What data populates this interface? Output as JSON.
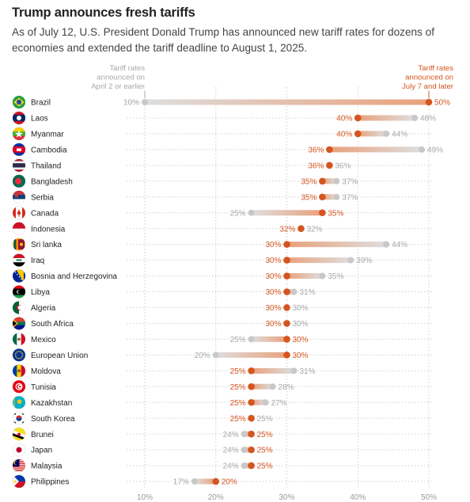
{
  "title": "Trump announces fresh tariffs",
  "subtitle": "As of July 12, U.S. President Donald Trump has announced new tariff rates for dozens of economies and extended the tariff deadline to August 1, 2025.",
  "colors": {
    "new": "#d4551f",
    "old": "#c8c8c8",
    "old_text": "#a8a8a8",
    "grid": "#cfcfcf"
  },
  "chart_data": {
    "type": "dot-range",
    "series": [
      {
        "name": "Tariff rates announced on April 2 or earlier",
        "header_lines": [
          "Tariff rates",
          "announced on",
          "April 2 or earlier"
        ]
      },
      {
        "name": "Tariff rates announced on July 7 and later",
        "header_lines": [
          "Tariff rates",
          "announced on",
          "July 7 and later"
        ]
      }
    ],
    "x_ticks": [
      "10%",
      "20%",
      "30%",
      "40%",
      "50%"
    ],
    "xlim": [
      10,
      50
    ],
    "rows": [
      {
        "country": "Brazil",
        "old": 10,
        "new": 50,
        "old_label": "10%",
        "new_label": "50%"
      },
      {
        "country": "Laos",
        "old": 48,
        "new": 40,
        "old_label": "48%",
        "new_label": "40%"
      },
      {
        "country": "Myanmar",
        "old": 44,
        "new": 40,
        "old_label": "44%",
        "new_label": "40%"
      },
      {
        "country": "Cambodia",
        "old": 49,
        "new": 36,
        "old_label": "49%",
        "new_label": "36%"
      },
      {
        "country": "Thailand",
        "old": 36,
        "new": 36,
        "old_label": "36%",
        "new_label": "36%"
      },
      {
        "country": "Bangladesh",
        "old": 37,
        "new": 35,
        "old_label": "37%",
        "new_label": "35%"
      },
      {
        "country": "Serbia",
        "old": 37,
        "new": 35,
        "old_label": "37%",
        "new_label": "35%"
      },
      {
        "country": "Canada",
        "old": 25,
        "new": 35,
        "old_label": "25%",
        "new_label": "35%"
      },
      {
        "country": "Indonesia",
        "old": 32,
        "new": 32,
        "old_label": "32%",
        "new_label": "32%"
      },
      {
        "country": "Sri lanka",
        "old": 44,
        "new": 30,
        "old_label": "44%",
        "new_label": "30%"
      },
      {
        "country": "Iraq",
        "old": 39,
        "new": 30,
        "old_label": "39%",
        "new_label": "30%"
      },
      {
        "country": "Bosnia and Herzegovina",
        "old": 35,
        "new": 30,
        "old_label": "35%",
        "new_label": "30%"
      },
      {
        "country": "Libya",
        "old": 31,
        "new": 30,
        "old_label": "31%",
        "new_label": "30%"
      },
      {
        "country": "Algeria",
        "old": 30,
        "new": 30,
        "old_label": "30%",
        "new_label": "30%"
      },
      {
        "country": "South Africa",
        "old": 30,
        "new": 30,
        "old_label": "30%",
        "new_label": "30%"
      },
      {
        "country": "Mexico",
        "old": 25,
        "new": 30,
        "old_label": "25%",
        "new_label": "30%"
      },
      {
        "country": "European Union",
        "old": 20,
        "new": 30,
        "old_label": "20%",
        "new_label": "30%"
      },
      {
        "country": "Moldova",
        "old": 31,
        "new": 25,
        "old_label": "31%",
        "new_label": "25%"
      },
      {
        "country": "Tunisia",
        "old": 28,
        "new": 25,
        "old_label": "28%",
        "new_label": "25%"
      },
      {
        "country": "Kazakhstan",
        "old": 27,
        "new": 25,
        "old_label": "27%",
        "new_label": "25%"
      },
      {
        "country": "South Korea",
        "old": 25,
        "new": 25,
        "old_label": "25%",
        "new_label": "25%"
      },
      {
        "country": "Brunei",
        "old": 24,
        "new": 25,
        "old_label": "24%",
        "new_label": "25%"
      },
      {
        "country": "Japan",
        "old": 24,
        "new": 25,
        "old_label": "24%",
        "new_label": "25%"
      },
      {
        "country": "Malaysia",
        "old": 24,
        "new": 25,
        "old_label": "24%",
        "new_label": "25%"
      },
      {
        "country": "Philippines",
        "old": 17,
        "new": 20,
        "old_label": "17%",
        "new_label": "20%"
      }
    ]
  }
}
